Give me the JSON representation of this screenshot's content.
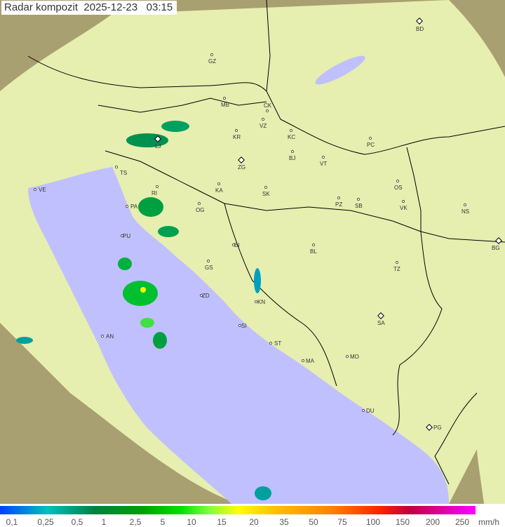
{
  "header": {
    "title": "Radar kompozit",
    "date": "2025-12-23",
    "time": "03:15"
  },
  "colors": {
    "sea": "#c0c0ff",
    "land": "#e6eeb0",
    "outside_coverage": "#a8a070",
    "border": "#000000"
  },
  "cities": [
    {
      "code": "BD",
      "marker": "diamond"
    },
    {
      "code": "GZ",
      "marker": "dot"
    },
    {
      "code": "MB",
      "marker": "dot"
    },
    {
      "code": "CK",
      "marker": "dot"
    },
    {
      "code": "VZ",
      "marker": "dot"
    },
    {
      "code": "KR",
      "marker": "dot"
    },
    {
      "code": "KC",
      "marker": "dot"
    },
    {
      "code": "LJ",
      "marker": "diamond"
    },
    {
      "code": "PC",
      "marker": "dot"
    },
    {
      "code": "TS",
      "marker": "dot"
    },
    {
      "code": "ZG",
      "marker": "diamond"
    },
    {
      "code": "BJ",
      "marker": "dot"
    },
    {
      "code": "VT",
      "marker": "dot"
    },
    {
      "code": "VE",
      "marker": "dot"
    },
    {
      "code": "KA",
      "marker": "dot"
    },
    {
      "code": "SK",
      "marker": "dot"
    },
    {
      "code": "OS",
      "marker": "dot"
    },
    {
      "code": "RI",
      "marker": "dot"
    },
    {
      "code": "PA",
      "marker": "dot"
    },
    {
      "code": "OG",
      "marker": "dot"
    },
    {
      "code": "PZ",
      "marker": "dot"
    },
    {
      "code": "SB",
      "marker": "dot"
    },
    {
      "code": "VK",
      "marker": "dot"
    },
    {
      "code": "NS",
      "marker": "dot"
    },
    {
      "code": "PU",
      "marker": "dot"
    },
    {
      "code": "BI",
      "marker": "dot"
    },
    {
      "code": "BL",
      "marker": "dot"
    },
    {
      "code": "BG",
      "marker": "diamond"
    },
    {
      "code": "GS",
      "marker": "dot"
    },
    {
      "code": "TZ",
      "marker": "dot"
    },
    {
      "code": "ZD",
      "marker": "dot"
    },
    {
      "code": "KN",
      "marker": "dot"
    },
    {
      "code": "SA",
      "marker": "diamond"
    },
    {
      "code": "SI",
      "marker": "dot"
    },
    {
      "code": "AN",
      "marker": "dot"
    },
    {
      "code": "ST",
      "marker": "dot"
    },
    {
      "code": "MA",
      "marker": "dot"
    },
    {
      "code": "MO",
      "marker": "dot"
    },
    {
      "code": "DU",
      "marker": "dot"
    },
    {
      "code": "PG",
      "marker": "diamond"
    }
  ],
  "legend": {
    "unit": "mm/h",
    "ticks": [
      "0,1",
      "0,25",
      "0,5",
      "1",
      "2,5",
      "5",
      "10",
      "15",
      "20",
      "35",
      "50",
      "75",
      "100",
      "150",
      "200",
      "250"
    ]
  }
}
